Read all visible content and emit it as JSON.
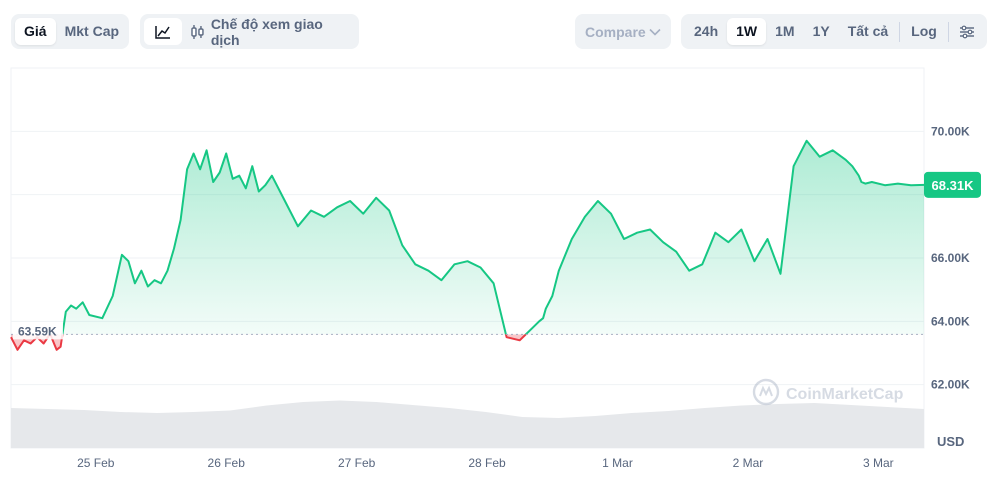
{
  "toolbar": {
    "type_tabs": [
      {
        "label": "Giá",
        "active": true
      },
      {
        "label": "Mkt Cap",
        "active": false
      }
    ],
    "mode_label": "Chế độ xem giao dịch",
    "compare_label": "Compare",
    "ranges": [
      {
        "label": "24h",
        "active": false
      },
      {
        "label": "1W",
        "active": true
      },
      {
        "label": "1M",
        "active": false
      },
      {
        "label": "1Y",
        "active": false
      },
      {
        "label": "Tất cả",
        "active": false
      }
    ],
    "log_label": "Log",
    "icons": {
      "line_chart": "line-chart-icon",
      "candle": "candlestick-icon",
      "chevron": "chevron-down-icon",
      "settings": "sliders-icon"
    }
  },
  "watermark": "CoinMarketCap",
  "colors": {
    "up": "#16c784",
    "down": "#ea3943",
    "grid": "#eff2f5",
    "axis_text": "#58667e",
    "volume": "#e6e8eb"
  },
  "chart_data": {
    "type": "area",
    "currency_label": "USD",
    "reference_price": 63590,
    "reference_label": "63.59K",
    "current_price": 68310,
    "current_label": "68.31K",
    "ylim": [
      60000,
      72000
    ],
    "y_ticks": [
      {
        "value": 62000,
        "label": "62.00K"
      },
      {
        "value": 64000,
        "label": "64.00K"
      },
      {
        "value": 66000,
        "label": "66.00K"
      },
      {
        "value": 70000,
        "label": "70.00K"
      }
    ],
    "x_ticks": [
      {
        "t": 0.65,
        "label": "25 Feb"
      },
      {
        "t": 1.65,
        "label": "26 Feb"
      },
      {
        "t": 2.65,
        "label": "27 Feb"
      },
      {
        "t": 3.65,
        "label": "28 Feb"
      },
      {
        "t": 4.65,
        "label": "1 Mar"
      },
      {
        "t": 5.65,
        "label": "2 Mar"
      },
      {
        "t": 6.65,
        "label": "3 Mar"
      }
    ],
    "t_range": [
      0,
      7.0
    ],
    "series": [
      {
        "t": [
          0,
          0.05,
          0.1,
          0.15,
          0.2,
          0.25,
          0.3,
          0.35,
          0.38,
          0.42,
          0.46,
          0.5,
          0.55,
          0.6,
          0.7,
          0.78,
          0.85,
          0.9,
          0.95,
          1.0,
          1.05,
          1.1,
          1.15,
          1.2,
          1.25,
          1.3,
          1.35,
          1.4,
          1.45,
          1.5,
          1.55,
          1.6,
          1.65,
          1.7,
          1.75,
          1.8,
          1.85,
          1.9,
          1.95,
          2.0,
          2.1,
          2.2,
          2.3,
          2.4,
          2.5,
          2.6,
          2.7,
          2.8,
          2.9,
          3.0,
          3.1,
          3.2,
          3.3,
          3.4,
          3.5,
          3.6,
          3.7,
          3.8,
          3.9,
          4.0,
          4.05,
          4.08,
          4.1,
          4.15,
          4.2,
          4.3,
          4.4,
          4.5,
          4.6,
          4.7,
          4.8,
          4.9,
          5.0,
          5.1,
          5.2,
          5.3,
          5.4,
          5.5,
          5.6,
          5.7,
          5.8,
          5.9,
          6.0,
          6.1,
          6.2,
          6.3,
          6.4,
          6.45,
          6.5,
          6.52,
          6.55,
          6.6,
          6.7,
          6.8,
          6.9,
          7.0
        ],
        "price": [
          63500,
          63100,
          63400,
          63300,
          63500,
          63300,
          63600,
          63100,
          63200,
          64300,
          64500,
          64400,
          64600,
          64200,
          64100,
          64800,
          66100,
          65900,
          65200,
          65600,
          65100,
          65300,
          65200,
          65600,
          66300,
          67200,
          68800,
          69300,
          68800,
          69400,
          68400,
          68700,
          69300,
          68500,
          68600,
          68200,
          68900,
          68100,
          68300,
          68600,
          67800,
          67000,
          67500,
          67300,
          67600,
          67800,
          67400,
          67900,
          67500,
          66400,
          65800,
          65600,
          65300,
          65800,
          65900,
          65700,
          65200,
          63500,
          63400,
          63800,
          64000,
          64100,
          64400,
          64800,
          65600,
          66600,
          67300,
          67800,
          67400,
          66600,
          66800,
          66900,
          66500,
          66200,
          65600,
          65800,
          66800,
          66500,
          66900,
          65900,
          66600,
          65500,
          68900,
          69700,
          69200,
          69400,
          69100,
          68900,
          68600,
          68400,
          68350,
          68400,
          68300,
          68350,
          68300,
          68310
        ]
      }
    ],
    "volume": [
      0.8,
      0.78,
      0.76,
      0.72,
      0.7,
      0.72,
      0.75,
      0.85,
      0.92,
      0.95,
      0.92,
      0.86,
      0.8,
      0.72,
      0.62,
      0.6,
      0.64,
      0.7,
      0.74,
      0.8,
      0.85,
      0.88,
      0.9,
      0.86,
      0.82,
      0.78
    ]
  }
}
